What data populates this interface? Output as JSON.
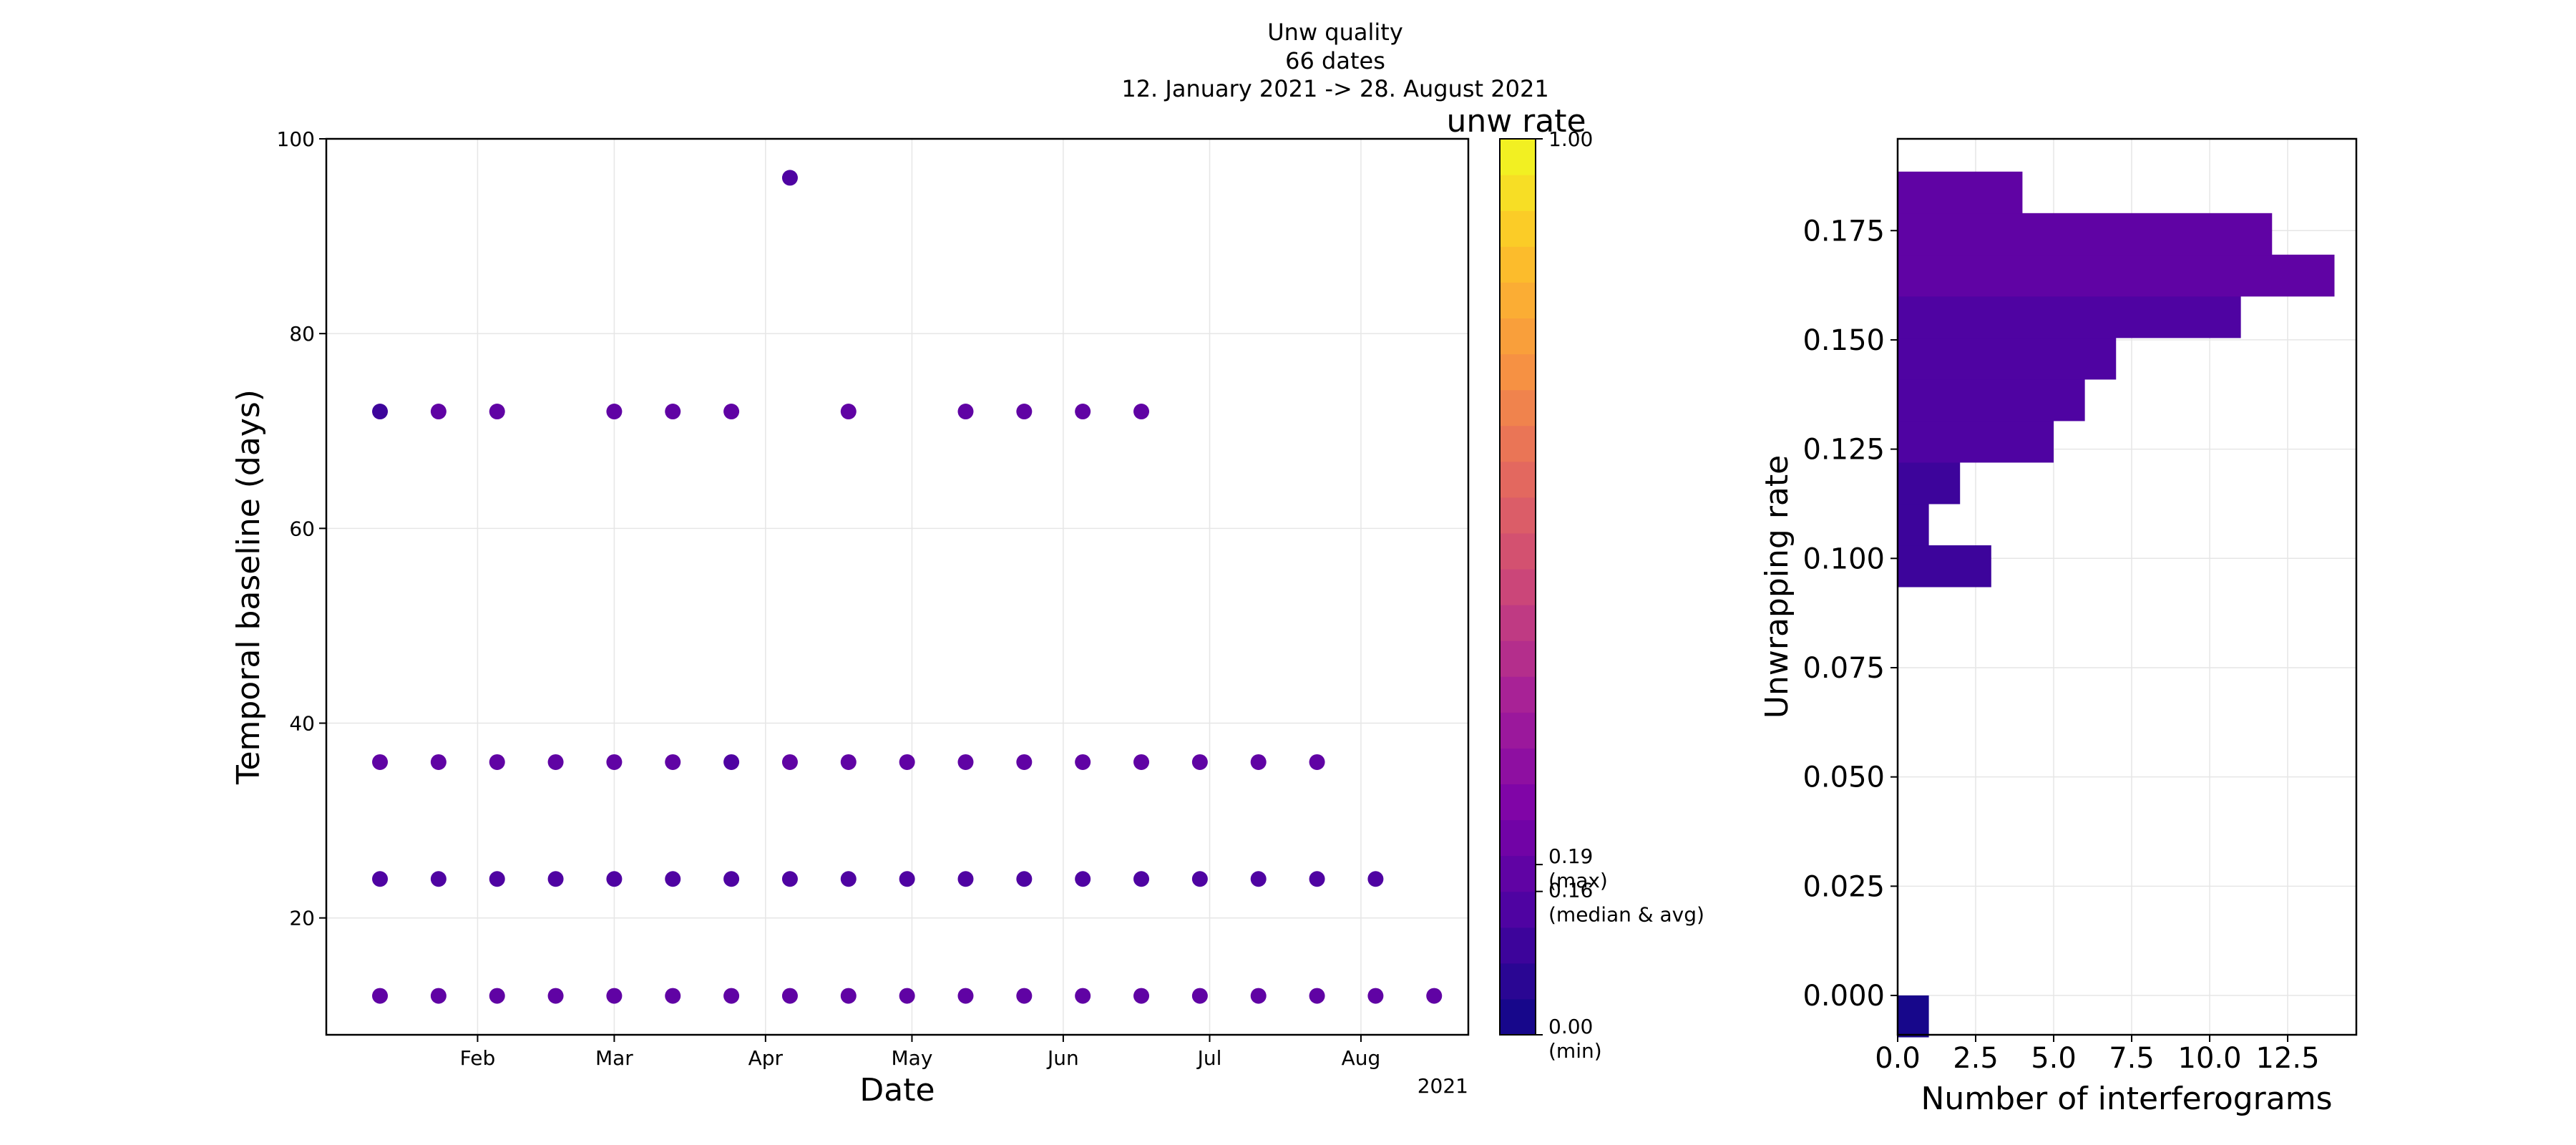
{
  "suptitle": {
    "line1": "Unw quality",
    "line2": "66 dates",
    "line3": "12. January 2021 -> 28. August 2021"
  },
  "chart_data": [
    {
      "type": "scatter",
      "xlabel": "Date",
      "ylabel": "Temporal baseline (days)",
      "x_tick_labels": [
        "Feb",
        "Mar",
        "Apr",
        "May",
        "Jun",
        "Jul",
        "Aug"
      ],
      "x_tick_dates": [
        "2021-02-01",
        "2021-03-01",
        "2021-04-01",
        "2021-05-01",
        "2021-06-01",
        "2021-07-01",
        "2021-08-01"
      ],
      "x_offset_label": "2021",
      "xlim": [
        "2021-01-01",
        "2021-08-23"
      ],
      "ylim": [
        8,
        100
      ],
      "y_ticks": [
        20,
        40,
        60,
        80,
        100
      ],
      "grid": true,
      "color_metric": "unw rate",
      "series": [
        {
          "baseline_days": 12,
          "x": [
            "2021-01-12",
            "2021-01-24",
            "2021-02-05",
            "2021-02-17",
            "2021-03-01",
            "2021-03-13",
            "2021-03-25",
            "2021-04-06",
            "2021-04-18",
            "2021-04-30",
            "2021-05-12",
            "2021-05-24",
            "2021-06-05",
            "2021-06-17",
            "2021-06-29",
            "2021-07-11",
            "2021-07-23",
            "2021-08-04",
            "2021-08-16"
          ],
          "unw_rate": [
            0.16,
            0.16,
            0.16,
            0.16,
            0.16,
            0.16,
            0.16,
            0.16,
            0.16,
            0.16,
            0.16,
            0.16,
            0.16,
            0.16,
            0.16,
            0.16,
            0.16,
            0.16,
            0.16
          ]
        },
        {
          "baseline_days": 24,
          "x": [
            "2021-01-12",
            "2021-01-24",
            "2021-02-05",
            "2021-02-17",
            "2021-03-01",
            "2021-03-13",
            "2021-03-25",
            "2021-04-06",
            "2021-04-18",
            "2021-04-30",
            "2021-05-12",
            "2021-05-24",
            "2021-06-05",
            "2021-06-17",
            "2021-06-29",
            "2021-07-11",
            "2021-07-23",
            "2021-08-04"
          ],
          "unw_rate": [
            0.15,
            0.15,
            0.15,
            0.15,
            0.15,
            0.15,
            0.15,
            0.13,
            0.15,
            0.15,
            0.15,
            0.15,
            0.15,
            0.15,
            0.15,
            0.15,
            0.15,
            0.15
          ]
        },
        {
          "baseline_days": 36,
          "x": [
            "2021-01-12",
            "2021-01-24",
            "2021-02-05",
            "2021-02-17",
            "2021-03-01",
            "2021-03-13",
            "2021-03-25",
            "2021-04-06",
            "2021-04-18",
            "2021-04-30",
            "2021-05-12",
            "2021-05-24",
            "2021-06-05",
            "2021-06-17",
            "2021-06-29",
            "2021-07-11",
            "2021-07-23"
          ],
          "unw_rate": [
            0.16,
            0.16,
            0.16,
            0.16,
            0.16,
            0.16,
            0.13,
            0.16,
            0.16,
            0.16,
            0.16,
            0.16,
            0.16,
            0.16,
            0.16,
            0.16,
            0.16
          ]
        },
        {
          "baseline_days": 72,
          "x": [
            "2021-01-12",
            "2021-01-24",
            "2021-02-05",
            "2021-03-01",
            "2021-03-13",
            "2021-03-25",
            "2021-04-18",
            "2021-05-12",
            "2021-05-24",
            "2021-06-05",
            "2021-06-17"
          ],
          "unw_rate": [
            0.1,
            0.17,
            0.17,
            0.19,
            0.17,
            0.17,
            0.17,
            0.17,
            0.17,
            0.17,
            0.17
          ]
        },
        {
          "baseline_days": 96,
          "x": [
            "2021-04-06"
          ],
          "unw_rate": [
            0.15
          ]
        }
      ]
    },
    {
      "type": "bar",
      "orientation": "horizontal",
      "xlabel": "Number of interferograms",
      "ylabel": "Unwrapping rate",
      "xlim": [
        0,
        14.7
      ],
      "x_ticks": [
        0.0,
        2.5,
        5.0,
        7.5,
        10.0,
        12.5
      ],
      "x_tick_labels": [
        "0.0",
        "2.5",
        "5.0",
        "7.5",
        "10.0",
        "12.5"
      ],
      "ylim": [
        -0.009,
        0.196
      ],
      "y_ticks": [
        0.0,
        0.025,
        0.05,
        0.075,
        0.1,
        0.125,
        0.15,
        0.175
      ],
      "y_tick_labels": [
        "0.000",
        "0.025",
        "0.050",
        "0.075",
        "0.100",
        "0.125",
        "0.150",
        "0.175"
      ],
      "grid": true,
      "bin_width": 0.0095,
      "bins": [
        {
          "start": -0.0095,
          "count": 1
        },
        {
          "start": 0.0935,
          "count": 3
        },
        {
          "start": 0.103,
          "count": 1
        },
        {
          "start": 0.1125,
          "count": 2
        },
        {
          "start": 0.122,
          "count": 5
        },
        {
          "start": 0.1315,
          "count": 6
        },
        {
          "start": 0.141,
          "count": 7
        },
        {
          "start": 0.1505,
          "count": 11
        },
        {
          "start": 0.16,
          "count": 14
        },
        {
          "start": 0.1695,
          "count": 12
        },
        {
          "start": 0.179,
          "count": 4
        }
      ]
    }
  ],
  "colorbar": {
    "title": "unw rate",
    "levels": 25,
    "top_label": "1.00",
    "max_value": 0.19,
    "max_label": "0.19",
    "max_sub": "(max)",
    "median_value": 0.16,
    "median_label": "0.16",
    "median_sub": "(median & avg)",
    "min_value": 0.0,
    "min_label": "0.00",
    "min_sub": "(min)"
  }
}
